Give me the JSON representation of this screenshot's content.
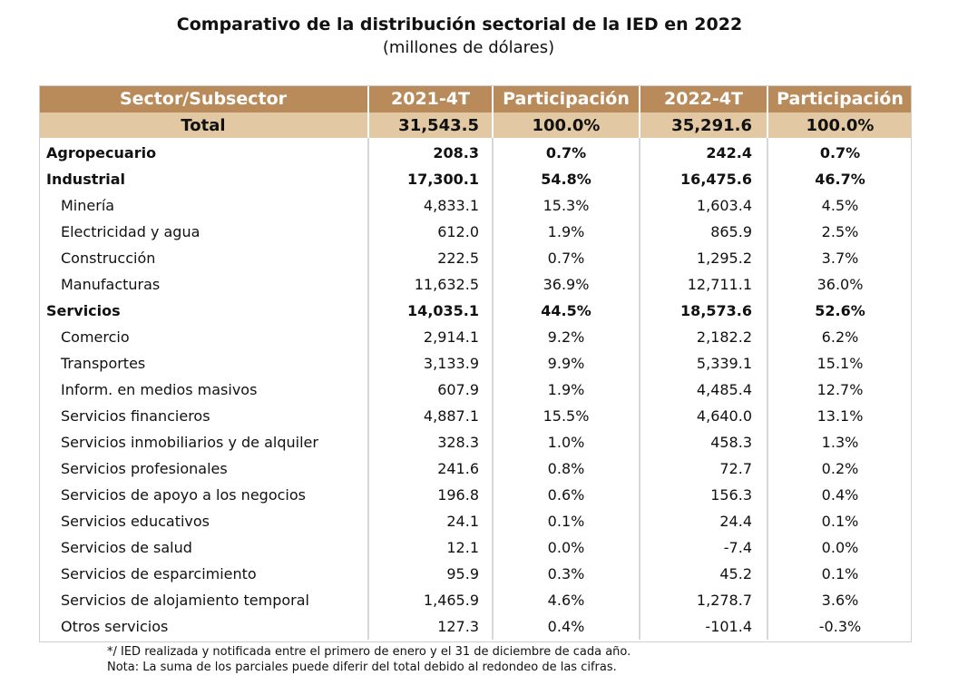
{
  "title": "Comparativo de la distribución sectorial de la IED en 2022",
  "subtitle": "(millones de dólares)",
  "headers": {
    "sector": "Sector/Subsector",
    "year1": "2021-4T",
    "share1": "Participación",
    "year2": "2022-4T",
    "share2": "Participación"
  },
  "total": {
    "name": "Total",
    "v1": "31,543.5",
    "p1": "100.0%",
    "v2": "35,291.6",
    "p2": "100.0%"
  },
  "rows": [
    {
      "name": "Agropecuario",
      "v1": "208.3",
      "p1": "0.7%",
      "v2": "242.4",
      "p2": "0.7%",
      "level": "sector"
    },
    {
      "name": "Industrial",
      "v1": "17,300.1",
      "p1": "54.8%",
      "v2": "16,475.6",
      "p2": "46.7%",
      "level": "sector"
    },
    {
      "name": "Minería",
      "v1": "4,833.1",
      "p1": "15.3%",
      "v2": "1,603.4",
      "p2": "4.5%",
      "level": "sub"
    },
    {
      "name": "Electricidad y agua",
      "v1": "612.0",
      "p1": "1.9%",
      "v2": "865.9",
      "p2": "2.5%",
      "level": "sub"
    },
    {
      "name": "Construcción",
      "v1": "222.5",
      "p1": "0.7%",
      "v2": "1,295.2",
      "p2": "3.7%",
      "level": "sub"
    },
    {
      "name": "Manufacturas",
      "v1": "11,632.5",
      "p1": "36.9%",
      "v2": "12,711.1",
      "p2": "36.0%",
      "level": "sub"
    },
    {
      "name": "Servicios",
      "v1": "14,035.1",
      "p1": "44.5%",
      "v2": "18,573.6",
      "p2": "52.6%",
      "level": "sector"
    },
    {
      "name": "Comercio",
      "v1": "2,914.1",
      "p1": "9.2%",
      "v2": "2,182.2",
      "p2": "6.2%",
      "level": "sub"
    },
    {
      "name": "Transportes",
      "v1": "3,133.9",
      "p1": "9.9%",
      "v2": "5,339.1",
      "p2": "15.1%",
      "level": "sub"
    },
    {
      "name": "Inform. en medios masivos",
      "v1": "607.9",
      "p1": "1.9%",
      "v2": "4,485.4",
      "p2": "12.7%",
      "level": "sub"
    },
    {
      "name": "Servicios financieros",
      "v1": "4,887.1",
      "p1": "15.5%",
      "v2": "4,640.0",
      "p2": "13.1%",
      "level": "sub"
    },
    {
      "name": "Servicios inmobiliarios y de alquiler",
      "v1": "328.3",
      "p1": "1.0%",
      "v2": "458.3",
      "p2": "1.3%",
      "level": "sub"
    },
    {
      "name": "Servicios profesionales",
      "v1": "241.6",
      "p1": "0.8%",
      "v2": "72.7",
      "p2": "0.2%",
      "level": "sub"
    },
    {
      "name": "Servicios de apoyo a los negocios",
      "v1": "196.8",
      "p1": "0.6%",
      "v2": "156.3",
      "p2": "0.4%",
      "level": "sub"
    },
    {
      "name": "Servicios educativos",
      "v1": "24.1",
      "p1": "0.1%",
      "v2": "24.4",
      "p2": "0.1%",
      "level": "sub"
    },
    {
      "name": "Servicios de salud",
      "v1": "12.1",
      "p1": "0.0%",
      "v2": "-7.4",
      "p2": "0.0%",
      "level": "sub"
    },
    {
      "name": "Servicios de esparcimiento",
      "v1": "95.9",
      "p1": "0.3%",
      "v2": "45.2",
      "p2": "0.1%",
      "level": "sub"
    },
    {
      "name": "Servicios de alojamiento temporal",
      "v1": "1,465.9",
      "p1": "4.6%",
      "v2": "1,278.7",
      "p2": "3.6%",
      "level": "sub"
    },
    {
      "name": "Otros servicios",
      "v1": "127.3",
      "p1": "0.4%",
      "v2": "-101.4",
      "p2": "-0.3%",
      "level": "sub"
    }
  ],
  "notes": [
    "*/ IED realizada y notificada entre el primero de enero y el 31 de diciembre de cada año.",
    "Nota: La suma de los parciales puede diferir del total debido al redondeo de las cifras."
  ]
}
